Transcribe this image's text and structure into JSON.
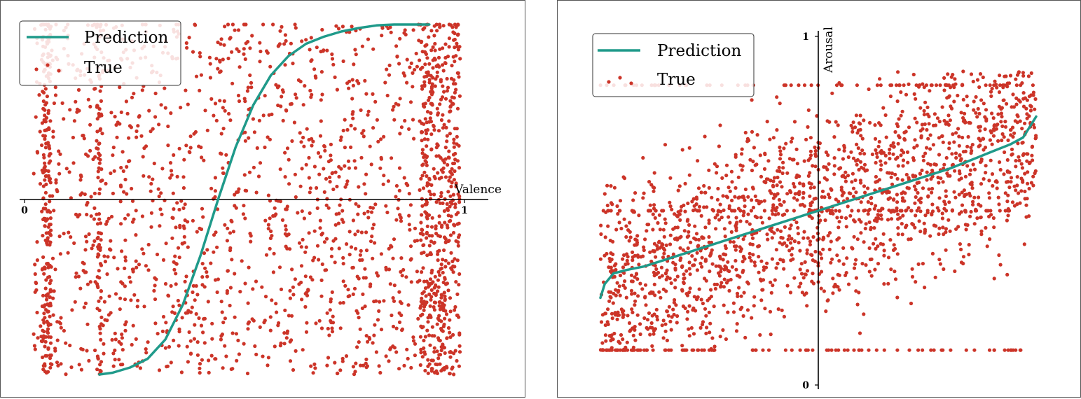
{
  "colors": {
    "prediction": "#1f9a8a",
    "true": "#cc3428",
    "axis": "#000000",
    "frame": "#555555"
  },
  "chart_data": [
    {
      "type": "scatter",
      "title": "",
      "xlabel": "Valence",
      "ylabel": "",
      "xlim": [
        0,
        1
      ],
      "x_ticks": [
        "0",
        "1"
      ],
      "grid": false,
      "legend_position": "top-left",
      "legend": [
        "Prediction",
        "True"
      ],
      "series": [
        {
          "name": "Prediction",
          "kind": "line",
          "x": [
            0.17,
            0.2,
            0.24,
            0.28,
            0.32,
            0.36,
            0.4,
            0.44,
            0.48,
            0.52,
            0.56,
            0.6,
            0.64,
            0.68,
            0.72,
            0.76,
            0.8,
            0.84,
            0.88,
            0.92
          ],
          "y": [
            -1.0,
            -0.99,
            -0.96,
            -0.91,
            -0.8,
            -0.6,
            -0.32,
            0.0,
            0.3,
            0.54,
            0.71,
            0.82,
            0.89,
            0.93,
            0.96,
            0.98,
            0.995,
            1.0,
            1.0,
            1.0
          ]
        },
        {
          "name": "True",
          "kind": "points",
          "count": 2200,
          "y_range": [
            -1.0,
            1.0
          ]
        }
      ]
    },
    {
      "type": "scatter",
      "title": "",
      "xlabel": "",
      "ylabel": "Arousal",
      "ylim": [
        0,
        1
      ],
      "y_ticks": [
        "0",
        "1"
      ],
      "grid": false,
      "legend_position": "top-left",
      "legend": [
        "Prediction",
        "True"
      ],
      "series": [
        {
          "name": "Prediction",
          "kind": "line",
          "x": [
            -0.5,
            -0.49,
            -0.47,
            -0.44,
            -0.4,
            -0.3,
            -0.2,
            -0.1,
            0.0,
            0.1,
            0.2,
            0.3,
            0.4,
            0.44,
            0.47,
            0.49,
            0.5
          ],
          "y": [
            0.25,
            0.29,
            0.32,
            0.33,
            0.34,
            0.38,
            0.42,
            0.46,
            0.5,
            0.54,
            0.58,
            0.62,
            0.67,
            0.69,
            0.71,
            0.75,
            0.77
          ]
        },
        {
          "name": "True",
          "kind": "points",
          "count": 2000,
          "y_range": [
            0.1,
            0.9
          ]
        }
      ]
    }
  ]
}
